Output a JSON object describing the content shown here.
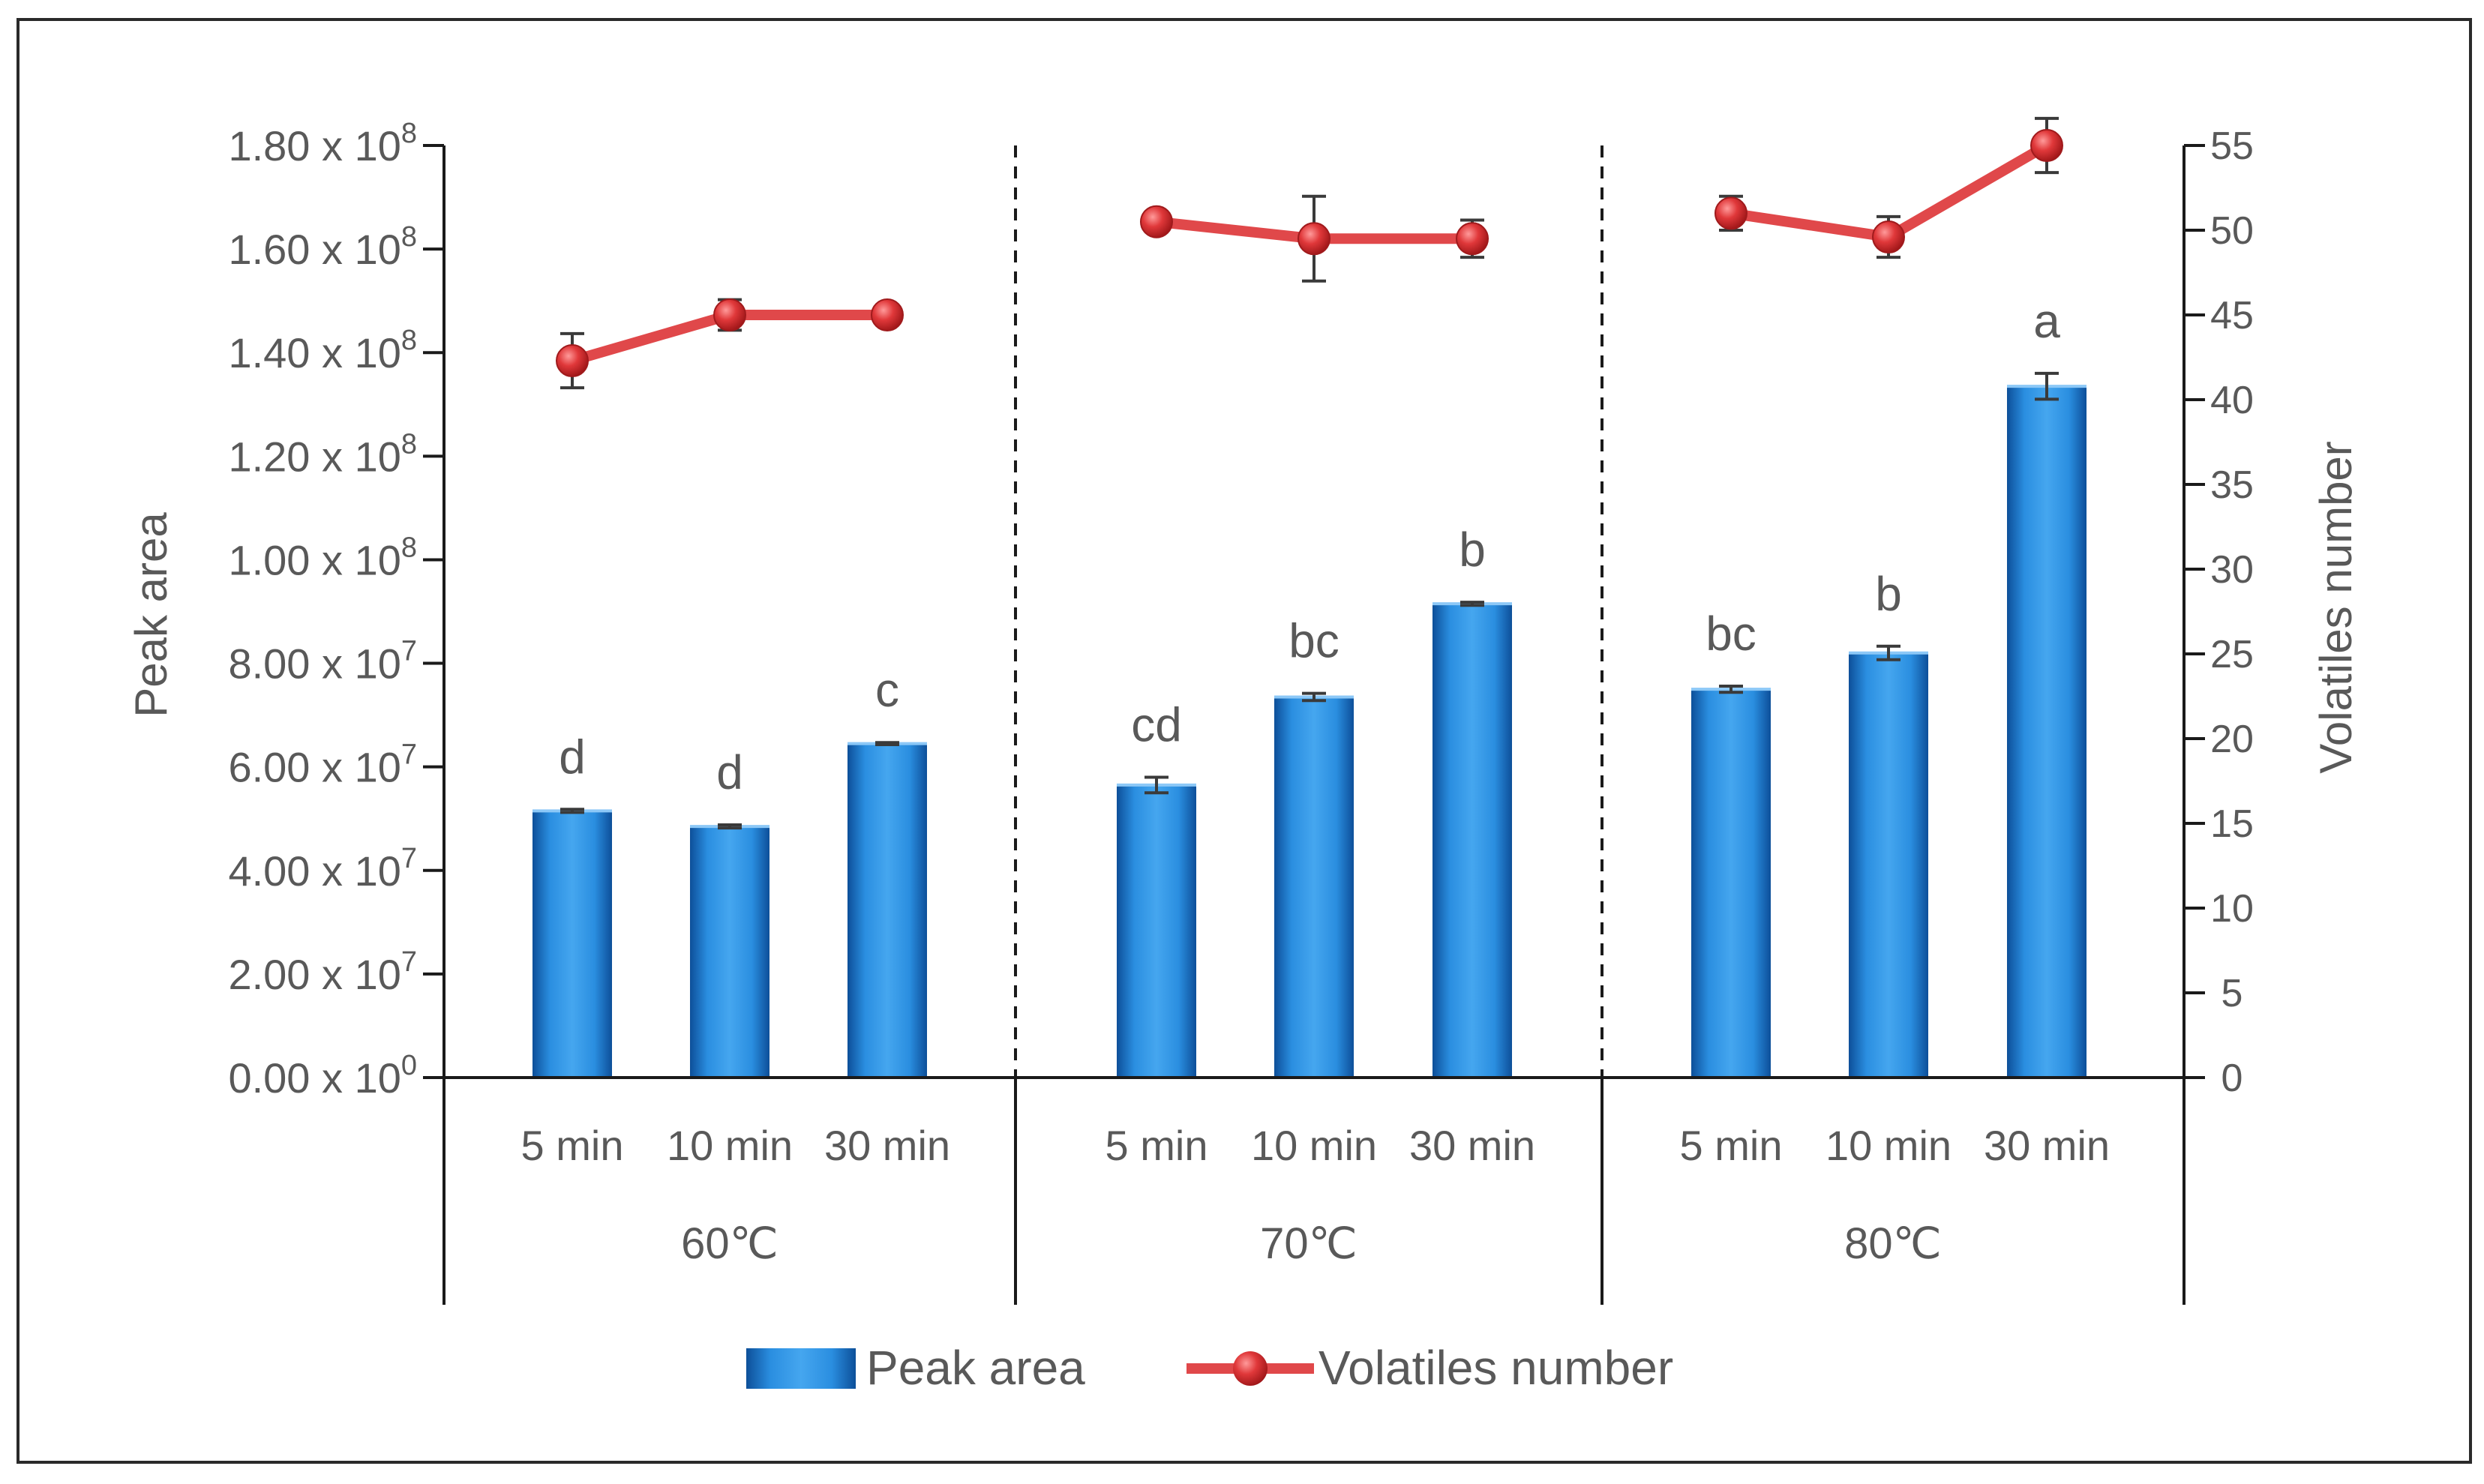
{
  "chart_data": {
    "type": "bar",
    "title": "",
    "groups": [
      {
        "label": "60℃",
        "categories": [
          "5 min",
          "10 min",
          "30 min"
        ]
      },
      {
        "label": "70℃",
        "categories": [
          "5 min",
          "10 min",
          "30 min"
        ]
      },
      {
        "label": "80℃",
        "categories": [
          "5 min",
          "10 min",
          "30 min"
        ]
      }
    ],
    "ylabel": "Peak area",
    "y2label": "Volatiles number",
    "ylim": [
      0,
      180000000
    ],
    "y2lim": [
      0,
      55
    ],
    "y_ticks": [
      {
        "mantissa": "0.00 x 10",
        "exp": "0"
      },
      {
        "mantissa": "2.00 x 10",
        "exp": "7"
      },
      {
        "mantissa": "4.00 x 10",
        "exp": "7"
      },
      {
        "mantissa": "6.00 x 10",
        "exp": "7"
      },
      {
        "mantissa": "8.00 x 10",
        "exp": "7"
      },
      {
        "mantissa": "1.00 x 10",
        "exp": "8"
      },
      {
        "mantissa": "1.20 x 10",
        "exp": "8"
      },
      {
        "mantissa": "1.40 x 10",
        "exp": "8"
      },
      {
        "mantissa": "1.60 x 10",
        "exp": "8"
      },
      {
        "mantissa": "1.80 x 10",
        "exp": "8"
      }
    ],
    "y2_ticks": [
      "0",
      "5",
      "10",
      "15",
      "20",
      "25",
      "30",
      "35",
      "40",
      "45",
      "50",
      "55"
    ],
    "series": [
      {
        "name": "Peak area",
        "type": "bar",
        "color": "#1f7fd1",
        "values": [
          51500000,
          48500000,
          64500000,
          56500000,
          73500000,
          91500000,
          75000000,
          82000000,
          133500000
        ],
        "errors": [
          300000,
          300000,
          200000,
          1500000,
          700000,
          300000,
          600000,
          1300000,
          2500000
        ],
        "labels": [
          "d",
          "d",
          "c",
          "cd",
          "bc",
          "b",
          "bc",
          "b",
          "a"
        ]
      },
      {
        "name": "Volatiles number",
        "type": "line",
        "color": "#e0484a",
        "values": [
          42.3,
          45,
          45,
          50.5,
          49.5,
          49.5,
          51,
          49.6,
          55
        ],
        "errors": [
          1.6,
          0.9,
          0,
          0,
          2.5,
          1.1,
          1,
          1.2,
          1.6
        ]
      }
    ],
    "legend": {
      "position": "bottom",
      "entries": [
        "Peak area",
        "Volatiles number"
      ]
    }
  }
}
